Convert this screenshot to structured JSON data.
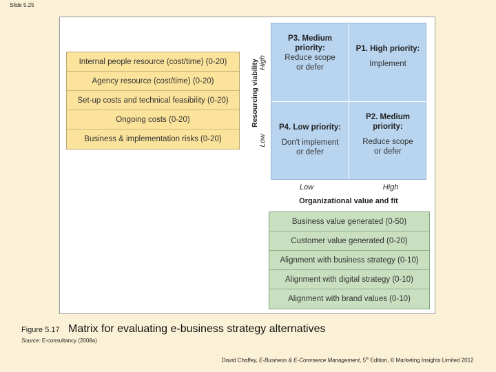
{
  "slide_number": "Slide 5.25",
  "resource_criteria": [
    "Internal people resource (cost/time) (0-20)",
    "Agency resource (cost/time) (0-20)",
    "Set-up costs and technical feasibility (0-20)",
    "Ongoing costs (0-20)",
    "Business & implementation risks (0-20)"
  ],
  "matrix": {
    "y_axis_title": "Resourcing viability",
    "y_high": "High",
    "y_low": "Low",
    "x_axis_title": "Organizational value and fit",
    "x_low": "Low",
    "x_high": "High",
    "quadrants": {
      "top_left": {
        "title": "P3. Medium\npriority:",
        "action": "Reduce scope\nor defer"
      },
      "top_right": {
        "title": "P1. High priority:",
        "action": "Implement"
      },
      "bottom_left": {
        "title": "P4. Low priority:",
        "action": "Don't implement\nor defer"
      },
      "bottom_right": {
        "title": "P2. Medium\npriority:",
        "action": "Reduce scope\nor defer"
      }
    }
  },
  "value_criteria": [
    "Business value generated (0-50)",
    "Customer value generated (0-20)",
    "Alignment with business strategy (0-10)",
    "Alignment with digital strategy (0-10)",
    "Alignment with brand values (0-10)"
  ],
  "figure": {
    "label": "Figure 5.17",
    "caption": "Matrix for evaluating e-business strategy alternatives",
    "source_label": "Source:",
    "source_text": "E-consultancy (2008a)"
  },
  "footer": {
    "author": "David Chaffey, ",
    "book_title": "E-Business & E-Commerce Management",
    "edition_prefix": ", 5",
    "edition_sup": "th",
    "edition_suffix": " Edition, © Marketing Insights Limited 2012"
  }
}
